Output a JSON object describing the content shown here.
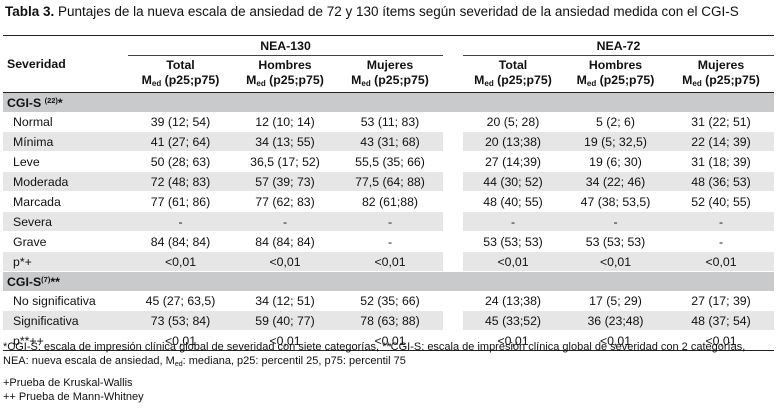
{
  "title": {
    "label": "Tabla 3.",
    "text": " Puntajes de la nueva escala de ansiedad de 72 y 130 ítems según severidad de la ansiedad medida con el CGI-S"
  },
  "header": {
    "severity": "Severidad",
    "group1": "NEA-130",
    "group2": "NEA-72",
    "cols": [
      {
        "name": "Total",
        "m": "M",
        "sub": "ed",
        "range": " (p25;p75)"
      },
      {
        "name": "Hombres",
        "m": "M",
        "sub": "ed",
        "range": " (p25;p75)"
      },
      {
        "name": "Mujeres",
        "m": "M",
        "sub": "ed",
        "range": " (p25;p75)"
      },
      {
        "name": "Total",
        "m": "M",
        "sub": "ed",
        "range": " (p25;p75)"
      },
      {
        "name": "Hombres",
        "m": "M",
        "sub": "ed",
        "range": " (p25;p75)"
      },
      {
        "name": "Mujeres",
        "m": "M",
        "sub": "ed",
        "range": " (p25;p75)"
      }
    ]
  },
  "section1": {
    "label": "CGI-S ",
    "sup": "(22)",
    "suffix": "*"
  },
  "rows1": [
    {
      "label": "Normal",
      "v": [
        "39 (12; 54)",
        "12 (10; 14)",
        "53 (11; 83)",
        "20 (5; 28)",
        "5 (2; 6)",
        "31 (22; 51)"
      ]
    },
    {
      "label": "Mínima",
      "v": [
        "41 (27; 64)",
        "34 (13; 55)",
        "43 (31; 68)",
        "20 (13;38)",
        "19 (5; 32,5)",
        "22 (14; 39)"
      ]
    },
    {
      "label": "Leve",
      "v": [
        "50 (28; 63)",
        "36,5 (17; 52)",
        "55,5 (35; 66)",
        "27 (14;39)",
        "19 (6; 30)",
        "31 (18; 39)"
      ]
    },
    {
      "label": "Moderada",
      "v": [
        "72 (48; 83)",
        "57 (39; 73)",
        "77,5 (64; 88)",
        "44 (30; 52)",
        "34 (22; 46)",
        "48 (36; 53)"
      ]
    },
    {
      "label": "Marcada",
      "v": [
        "77 (61; 86)",
        "77 (62; 83)",
        "82 (61;88)",
        "48 (40; 55)",
        "47 (38; 53,5)",
        "52 (40; 55)"
      ]
    },
    {
      "label": "Severa",
      "v": [
        "-",
        "-",
        "-",
        "-",
        "-",
        "-"
      ]
    },
    {
      "label": "Grave",
      "v": [
        "84 (84; 84)",
        "84 (84; 84)",
        "-",
        "53 (53; 53)",
        "53 (53; 53)",
        "-"
      ]
    },
    {
      "label": "p*+",
      "v": [
        "<0,01",
        "<0,01",
        "<0,01",
        "<0,01",
        "<0,01",
        "<0,01"
      ]
    }
  ],
  "section2": {
    "label": "CGI-S",
    "sup": "(7)",
    "suffix": "**"
  },
  "rows2": [
    {
      "label": "No significativa",
      "v": [
        "45 (27; 63,5)",
        "34 (12; 51)",
        "52 (35; 66)",
        "24 (13;38)",
        "17 (5; 29)",
        "27 (17; 39)"
      ]
    },
    {
      "label": "Significativa",
      "v": [
        "73 (53; 84)",
        "59 (40; 77)",
        "78 (63; 88)",
        "45 (33;52)",
        "36 (23;48)",
        "48 (37; 54)"
      ]
    },
    {
      "label": "p**++",
      "v": [
        "<0,01",
        "<0,01",
        "<0,01",
        "<0,01",
        "<0,01",
        "<0,01"
      ]
    }
  ],
  "footnotes": {
    "line1": "*CGI-S: escala de impresión clínica global de severidad con siete categorías, **CGI-S: escala de impresión clínica global de severidad con 2 categorías,",
    "line2_pre": "NEA: nueva escala de ansiedad, M",
    "line2_sub": "ed",
    "line2_post": ": mediana, p25: percentil 25, p75: percentil 75",
    "line3": "+Prueba de Kruskal-Wallis",
    "line4": "++ Prueba de Mann-Whitney"
  }
}
